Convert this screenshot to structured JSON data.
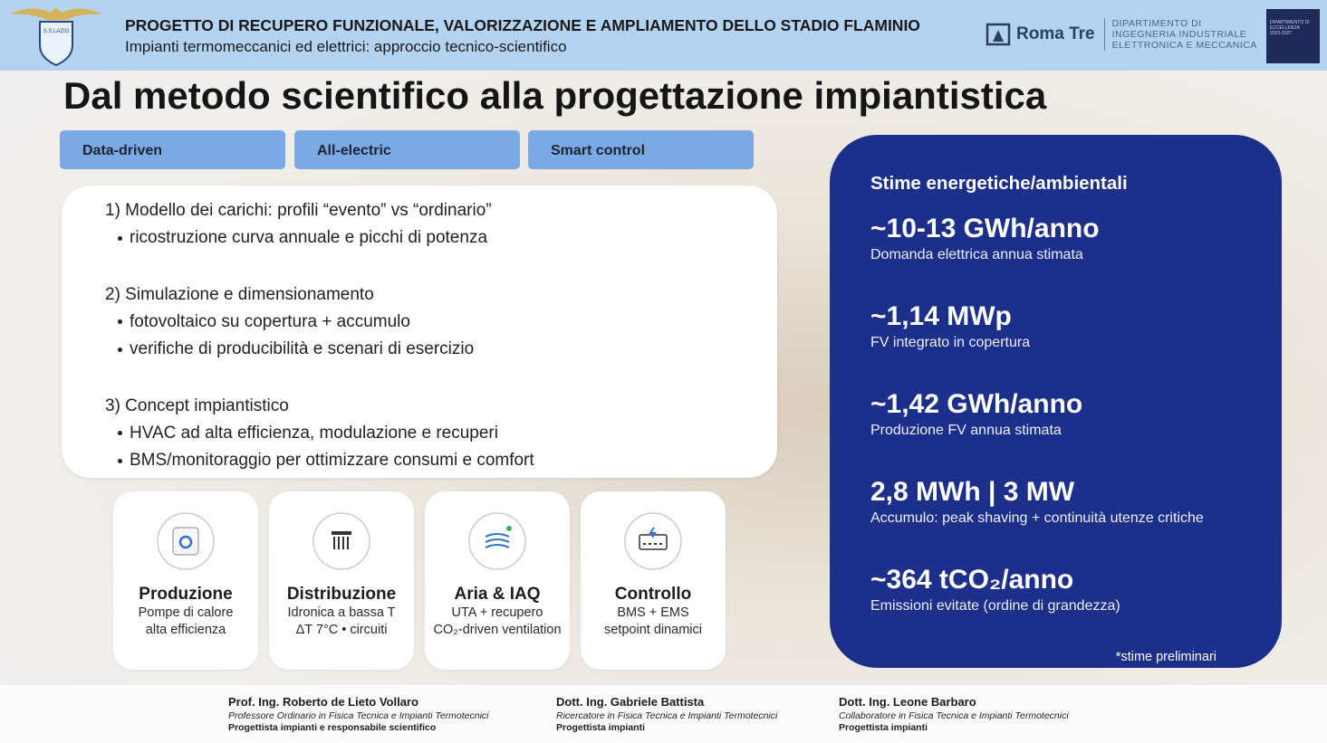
{
  "header": {
    "logo_text": "S.S.LAZIO",
    "title": "PROGETTO DI RECUPERO FUNZIONALE, VALORIZZAZIONE E AMPLIAMENTO DELLO STADIO FLAMINIO",
    "subtitle": "Impianti termomeccanici ed elettrici: approccio tecnico-scientifico",
    "university": "Roma Tre",
    "department": [
      "DIPARTIMENTO DI",
      "INGEGNERIA INDUSTRIALE",
      "ELETTRONICA E MECCANICA"
    ],
    "badge": [
      "DIPARTIMENTO DI",
      "ECCELLENZA",
      "2023-2027"
    ]
  },
  "main_title": "Dal metodo scientifico alla progettazione impiantistica",
  "tabs": [
    "Data-driven",
    "All-electric",
    "Smart control"
  ],
  "steps": [
    {
      "heading": "1) Modello dei carichi: profili “evento” vs “ordinario”",
      "bullets": [
        "ricostruzione curva annuale e picchi di potenza"
      ]
    },
    {
      "heading": "2) Simulazione e dimensionamento",
      "bullets": [
        "fotovoltaico su copertura + accumulo",
        "verifiche di producibilità e scenari di esercizio"
      ]
    },
    {
      "heading": "3) Concept impiantistico",
      "bullets": [
        "HVAC ad alta efficienza, modulazione e recuperi",
        "BMS/monitoraggio per ottimizzare consumi e comfort"
      ]
    }
  ],
  "cards": [
    {
      "title": "Produzione",
      "lines": [
        "Pompe di calore",
        "alta efficienza"
      ]
    },
    {
      "title": "Distribuzione",
      "lines": [
        "Idronica a bassa T",
        "ΔT 7°C • circuiti"
      ]
    },
    {
      "title": "Aria & IAQ",
      "lines": [
        "UTA + recupero",
        "CO₂-driven ventilation"
      ]
    },
    {
      "title": "Controllo",
      "lines": [
        "BMS + EMS",
        "setpoint dinamici"
      ]
    }
  ],
  "panel": {
    "title": "Stime energetiche/ambientali",
    "stats": [
      {
        "value": "~10-13 GWh/anno",
        "caption": "Domanda elettrica annua stimata"
      },
      {
        "value": "~1,14 MWp",
        "caption": "FV integrato in copertura"
      },
      {
        "value": "~1,42 GWh/anno",
        "caption": "Produzione FV annua stimata"
      },
      {
        "value": "2,8 MWh | 3 MW",
        "caption": "Accumulo: peak shaving + continuità utenze critiche"
      },
      {
        "value": "~364 tCO₂/anno",
        "caption": "Emissioni evitate (ordine di grandezza)"
      }
    ],
    "note": "*stime preliminari"
  },
  "footer": [
    {
      "name": "Prof. Ing. Roberto de Lieto Vollaro",
      "role": "Professore Ordinario in Fisica Tecnica e Impianti Termotecnici",
      "duty": "Progettista impianti e responsabile scientifico"
    },
    {
      "name": "Dott. Ing. Gabriele Battista",
      "role": "Ricercatore in Fisica Tecnica e Impianti Termotecnici",
      "duty": "Progettista impianti"
    },
    {
      "name": "Dott. Ing. Leone Barbaro",
      "role": "Collaboratore in Fisica Tecnica e Impianti Termotecnici",
      "duty": "Progettista impianti"
    }
  ]
}
